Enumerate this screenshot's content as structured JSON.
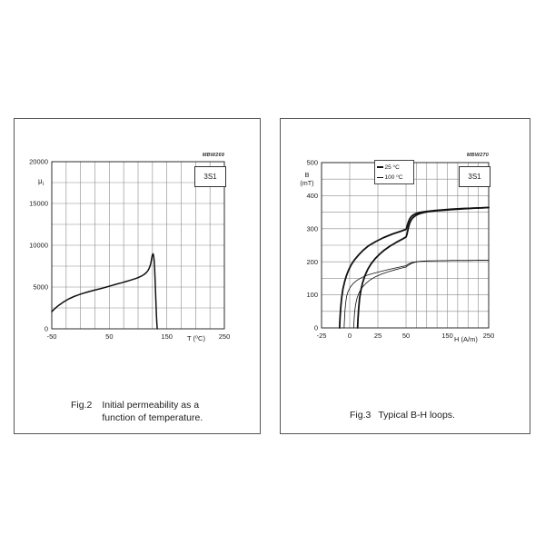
{
  "figures": [
    {
      "code": "MBW269",
      "material": "3S1",
      "y_label_main": "μ",
      "y_label_sub": "i",
      "x_label": "T (⁰C)",
      "caption_label": "Fig.2",
      "caption_line1": "Initial permeability as a",
      "caption_line2": "function of temperature."
    },
    {
      "code": "MBW270",
      "material": "3S1",
      "y_label_main": "B",
      "y_label_line2": "(mT)",
      "x_label": "H (A/m)",
      "caption_label": "Fig.3",
      "caption_line1": "Typical B-H loops."
    }
  ],
  "chart_data": [
    {
      "type": "line",
      "title": "Initial permeability as a function of temperature",
      "figure_code": "MBW269",
      "material": "3S1",
      "xlabel": "T (⁰C)",
      "ylabel": "μi",
      "x_grid": {
        "min": -50,
        "max": 250,
        "step": 25
      },
      "y_grid": {
        "min": 0,
        "max": 20000,
        "step": 2500
      },
      "x_tick_values": [
        -50,
        50,
        150,
        250
      ],
      "x_tick_labels": [
        "-50",
        "50",
        "150",
        "250"
      ],
      "y_tick_values": [
        0,
        5000,
        10000,
        15000,
        20000
      ],
      "y_tick_labels": [
        "0",
        "5000",
        "10000",
        "15000",
        "20000"
      ],
      "grid": true,
      "legend_position": "none",
      "series": [
        {
          "name": "initial permeability μi",
          "weight": "thick",
          "points": [
            [
              -50,
              2050
            ],
            [
              -45,
              2400
            ],
            [
              -40,
              2700
            ],
            [
              -35,
              2950
            ],
            [
              -30,
              3200
            ],
            [
              -25,
              3400
            ],
            [
              -20,
              3600
            ],
            [
              -15,
              3750
            ],
            [
              -10,
              3900
            ],
            [
              -5,
              4030
            ],
            [
              0,
              4150
            ],
            [
              5,
              4260
            ],
            [
              10,
              4360
            ],
            [
              15,
              4460
            ],
            [
              20,
              4550
            ],
            [
              25,
              4650
            ],
            [
              30,
              4730
            ],
            [
              35,
              4810
            ],
            [
              40,
              4900
            ],
            [
              45,
              5000
            ],
            [
              50,
              5100
            ],
            [
              55,
              5200
            ],
            [
              60,
              5300
            ],
            [
              65,
              5390
            ],
            [
              70,
              5480
            ],
            [
              75,
              5580
            ],
            [
              80,
              5680
            ],
            [
              85,
              5780
            ],
            [
              90,
              5890
            ],
            [
              95,
              6000
            ],
            [
              100,
              6120
            ],
            [
              105,
              6280
            ],
            [
              110,
              6480
            ],
            [
              114,
              6700
            ],
            [
              117,
              6950
            ],
            [
              119,
              7200
            ],
            [
              121,
              7550
            ],
            [
              122,
              7800
            ],
            [
              123,
              8150
            ],
            [
              124,
              8550
            ],
            [
              125,
              8870
            ],
            [
              125.8,
              8980
            ],
            [
              126.5,
              8900
            ],
            [
              127.2,
              8650
            ],
            [
              128,
              8150
            ],
            [
              128.8,
              7250
            ],
            [
              129.6,
              5900
            ],
            [
              130.4,
              4400
            ],
            [
              131.2,
              2900
            ],
            [
              132,
              1500
            ],
            [
              132.8,
              500
            ],
            [
              133.4,
              0
            ]
          ]
        }
      ]
    },
    {
      "type": "line",
      "title": "Typical B-H loops",
      "figure_code": "MBW270",
      "material": "3S1",
      "xlabel": "H (A/m)",
      "ylabel": "B (mT)",
      "x_grid": {
        "min": -25,
        "max": 250,
        "step": 25
      },
      "y_grid": {
        "min": 0,
        "max": 500,
        "step": 50
      },
      "x_scale": {
        "type": "broken-linear",
        "segments": [
          [
            -25,
            50
          ],
          [
            50,
            250
          ]
        ],
        "pixel_fractions": [
          0.505,
          0.495
        ]
      },
      "x_tick_values": [
        -25,
        0,
        25,
        50,
        150,
        250
      ],
      "x_tick_labels": [
        "-25",
        "0",
        "25",
        "50",
        "150",
        "250"
      ],
      "y_tick_values": [
        0,
        100,
        200,
        300,
        400,
        500
      ],
      "y_tick_labels": [
        "0",
        "100",
        "200",
        "300",
        "400",
        "500"
      ],
      "grid": true,
      "legend_position": "top-left-inside",
      "legend": [
        {
          "label": "25 ⁰C",
          "weight": "thick"
        },
        {
          "label": "100 ⁰C",
          "weight": "thin"
        }
      ],
      "series": [
        {
          "name": "B-H loop 25 ⁰C descending branch",
          "temperature": "25 ⁰C",
          "weight": "thick",
          "points": [
            [
              -9,
              0
            ],
            [
              -8.6,
              30
            ],
            [
              -8,
              60
            ],
            [
              -7.2,
              90
            ],
            [
              -6,
              118
            ],
            [
              -4.5,
              140
            ],
            [
              -3,
              157
            ],
            [
              -1,
              175
            ],
            [
              1.5,
              192
            ],
            [
              4.5,
              207
            ],
            [
              8,
              221
            ],
            [
              12,
              235
            ],
            [
              17,
              249
            ],
            [
              23,
              261
            ],
            [
              30,
              273
            ],
            [
              38,
              284
            ],
            [
              45,
              292
            ],
            [
              50,
              298
            ],
            [
              52,
              305
            ],
            [
              54,
              314
            ],
            [
              56.5,
              323
            ],
            [
              59.5,
              331
            ],
            [
              63,
              337
            ],
            [
              68,
              342
            ],
            [
              74,
              346
            ],
            [
              82,
              349
            ],
            [
              92,
              351
            ],
            [
              105,
              353
            ],
            [
              120,
              355
            ],
            [
              140,
              357
            ],
            [
              160,
              359
            ],
            [
              185,
              361
            ],
            [
              210,
              362
            ],
            [
              230,
              363
            ],
            [
              250,
              364
            ]
          ]
        },
        {
          "name": "B-H loop 25 ⁰C ascending branch",
          "temperature": "25 ⁰C",
          "weight": "thick",
          "points": [
            [
              7,
              0
            ],
            [
              7.4,
              30
            ],
            [
              8,
              60
            ],
            [
              8.8,
              90
            ],
            [
              10,
              115
            ],
            [
              11.5,
              137
            ],
            [
              13.5,
              158
            ],
            [
              16,
              177
            ],
            [
              19,
              194
            ],
            [
              22.5,
              209
            ],
            [
              26.5,
              223
            ],
            [
              31,
              236
            ],
            [
              36,
              248
            ],
            [
              41.5,
              259
            ],
            [
              47,
              269
            ],
            [
              50,
              275
            ],
            [
              52,
              282
            ],
            [
              54,
              293
            ],
            [
              56,
              305
            ],
            [
              58.5,
              316
            ],
            [
              61.5,
              324
            ],
            [
              65,
              331
            ],
            [
              70,
              337
            ],
            [
              76,
              342
            ],
            [
              84,
              346
            ],
            [
              93,
              349
            ],
            [
              105,
              352
            ],
            [
              120,
              354
            ],
            [
              140,
              356
            ],
            [
              160,
              358
            ],
            [
              185,
              360
            ],
            [
              210,
              362
            ],
            [
              230,
              363
            ],
            [
              250,
              364
            ]
          ]
        },
        {
          "name": "B-H loop 100 ⁰C descending branch",
          "temperature": "100 ⁰C",
          "weight": "thin",
          "points": [
            [
              -5,
              0
            ],
            [
              -4.6,
              28
            ],
            [
              -4.2,
              52
            ],
            [
              -3.6,
              75
            ],
            [
              -2.8,
              95
            ],
            [
              -1.5,
              110
            ],
            [
              0.5,
              123
            ],
            [
              3,
              134
            ],
            [
              6.5,
              144
            ],
            [
              11,
              153
            ],
            [
              16,
              160
            ],
            [
              22,
              166
            ],
            [
              29,
              172
            ],
            [
              36,
              178
            ],
            [
              43,
              183
            ],
            [
              50,
              188
            ],
            [
              54,
              192
            ],
            [
              59,
              195
            ],
            [
              66,
              198
            ],
            [
              75,
              200
            ],
            [
              88,
              202
            ],
            [
              105,
              203
            ],
            [
              130,
              203
            ],
            [
              160,
              204
            ],
            [
              200,
              204
            ],
            [
              250,
              205
            ]
          ]
        },
        {
          "name": "B-H loop 100 ⁰C ascending branch",
          "temperature": "100 ⁰C",
          "weight": "thin",
          "points": [
            [
              3.5,
              0
            ],
            [
              3.9,
              25
            ],
            [
              4.4,
              48
            ],
            [
              5.2,
              70
            ],
            [
              6.5,
              90
            ],
            [
              8.5,
              108
            ],
            [
              11,
              122
            ],
            [
              14.5,
              135
            ],
            [
              18.5,
              146
            ],
            [
              23,
              155
            ],
            [
              28.5,
              163
            ],
            [
              34.5,
              170
            ],
            [
              40.5,
              176
            ],
            [
              46,
              181
            ],
            [
              50,
              184
            ],
            [
              54,
              188
            ],
            [
              59,
              192
            ],
            [
              65,
              196
            ],
            [
              73,
              199
            ],
            [
              83,
              201
            ],
            [
              100,
              202
            ],
            [
              130,
              203
            ],
            [
              160,
              204
            ],
            [
              200,
              204
            ],
            [
              250,
              205
            ]
          ]
        }
      ]
    }
  ]
}
